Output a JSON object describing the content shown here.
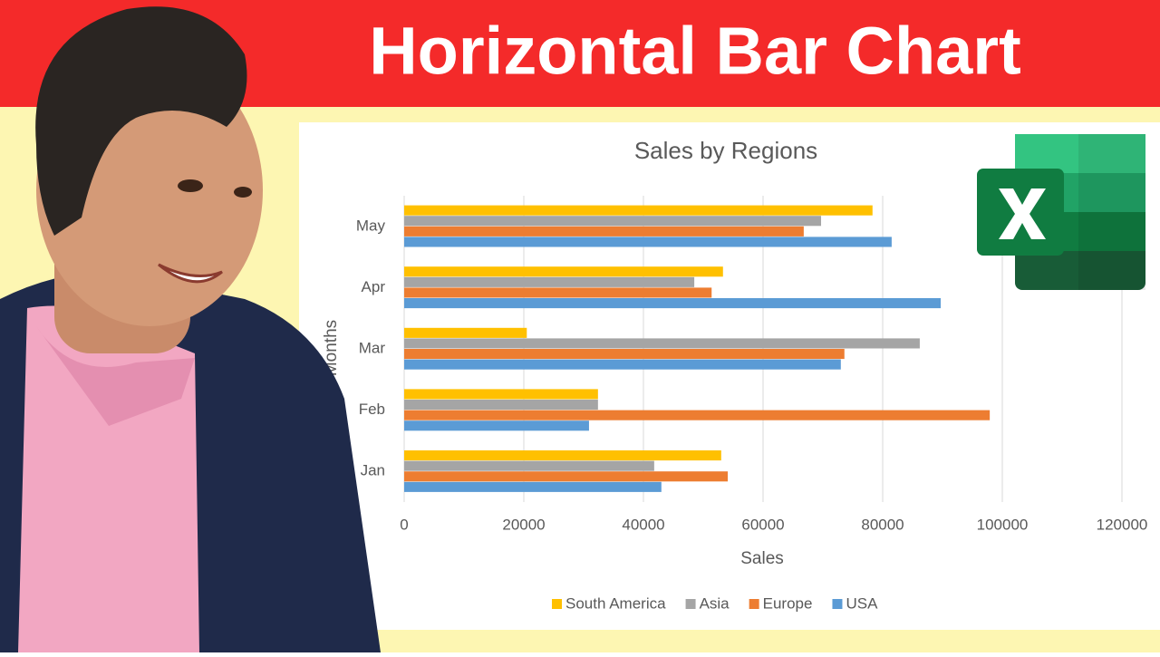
{
  "banner": {
    "title": "Horizontal Bar Chart"
  },
  "chart_data": {
    "type": "barh",
    "title": "Sales by Regions",
    "x_label": "Sales",
    "y_label": "Months",
    "categories": [
      "Jan",
      "Feb",
      "Mar",
      "Apr",
      "May"
    ],
    "series": [
      {
        "name": "South America",
        "color": "#ffc000",
        "values": [
          53000,
          32400,
          20500,
          53300,
          78300
        ]
      },
      {
        "name": "Asia",
        "color": "#a5a5a5",
        "values": [
          41800,
          32400,
          86200,
          48500,
          69700
        ]
      },
      {
        "name": "Europe",
        "color": "#ed7d31",
        "values": [
          54100,
          97900,
          73600,
          51400,
          66800
        ]
      },
      {
        "name": "USA",
        "color": "#5b9bd5",
        "values": [
          43000,
          30900,
          73000,
          89700,
          81500
        ]
      }
    ],
    "xlim": [
      0,
      120000
    ],
    "xticks": [
      0,
      20000,
      40000,
      60000,
      80000,
      100000,
      120000
    ],
    "grid": true,
    "legend": "bottom"
  }
}
